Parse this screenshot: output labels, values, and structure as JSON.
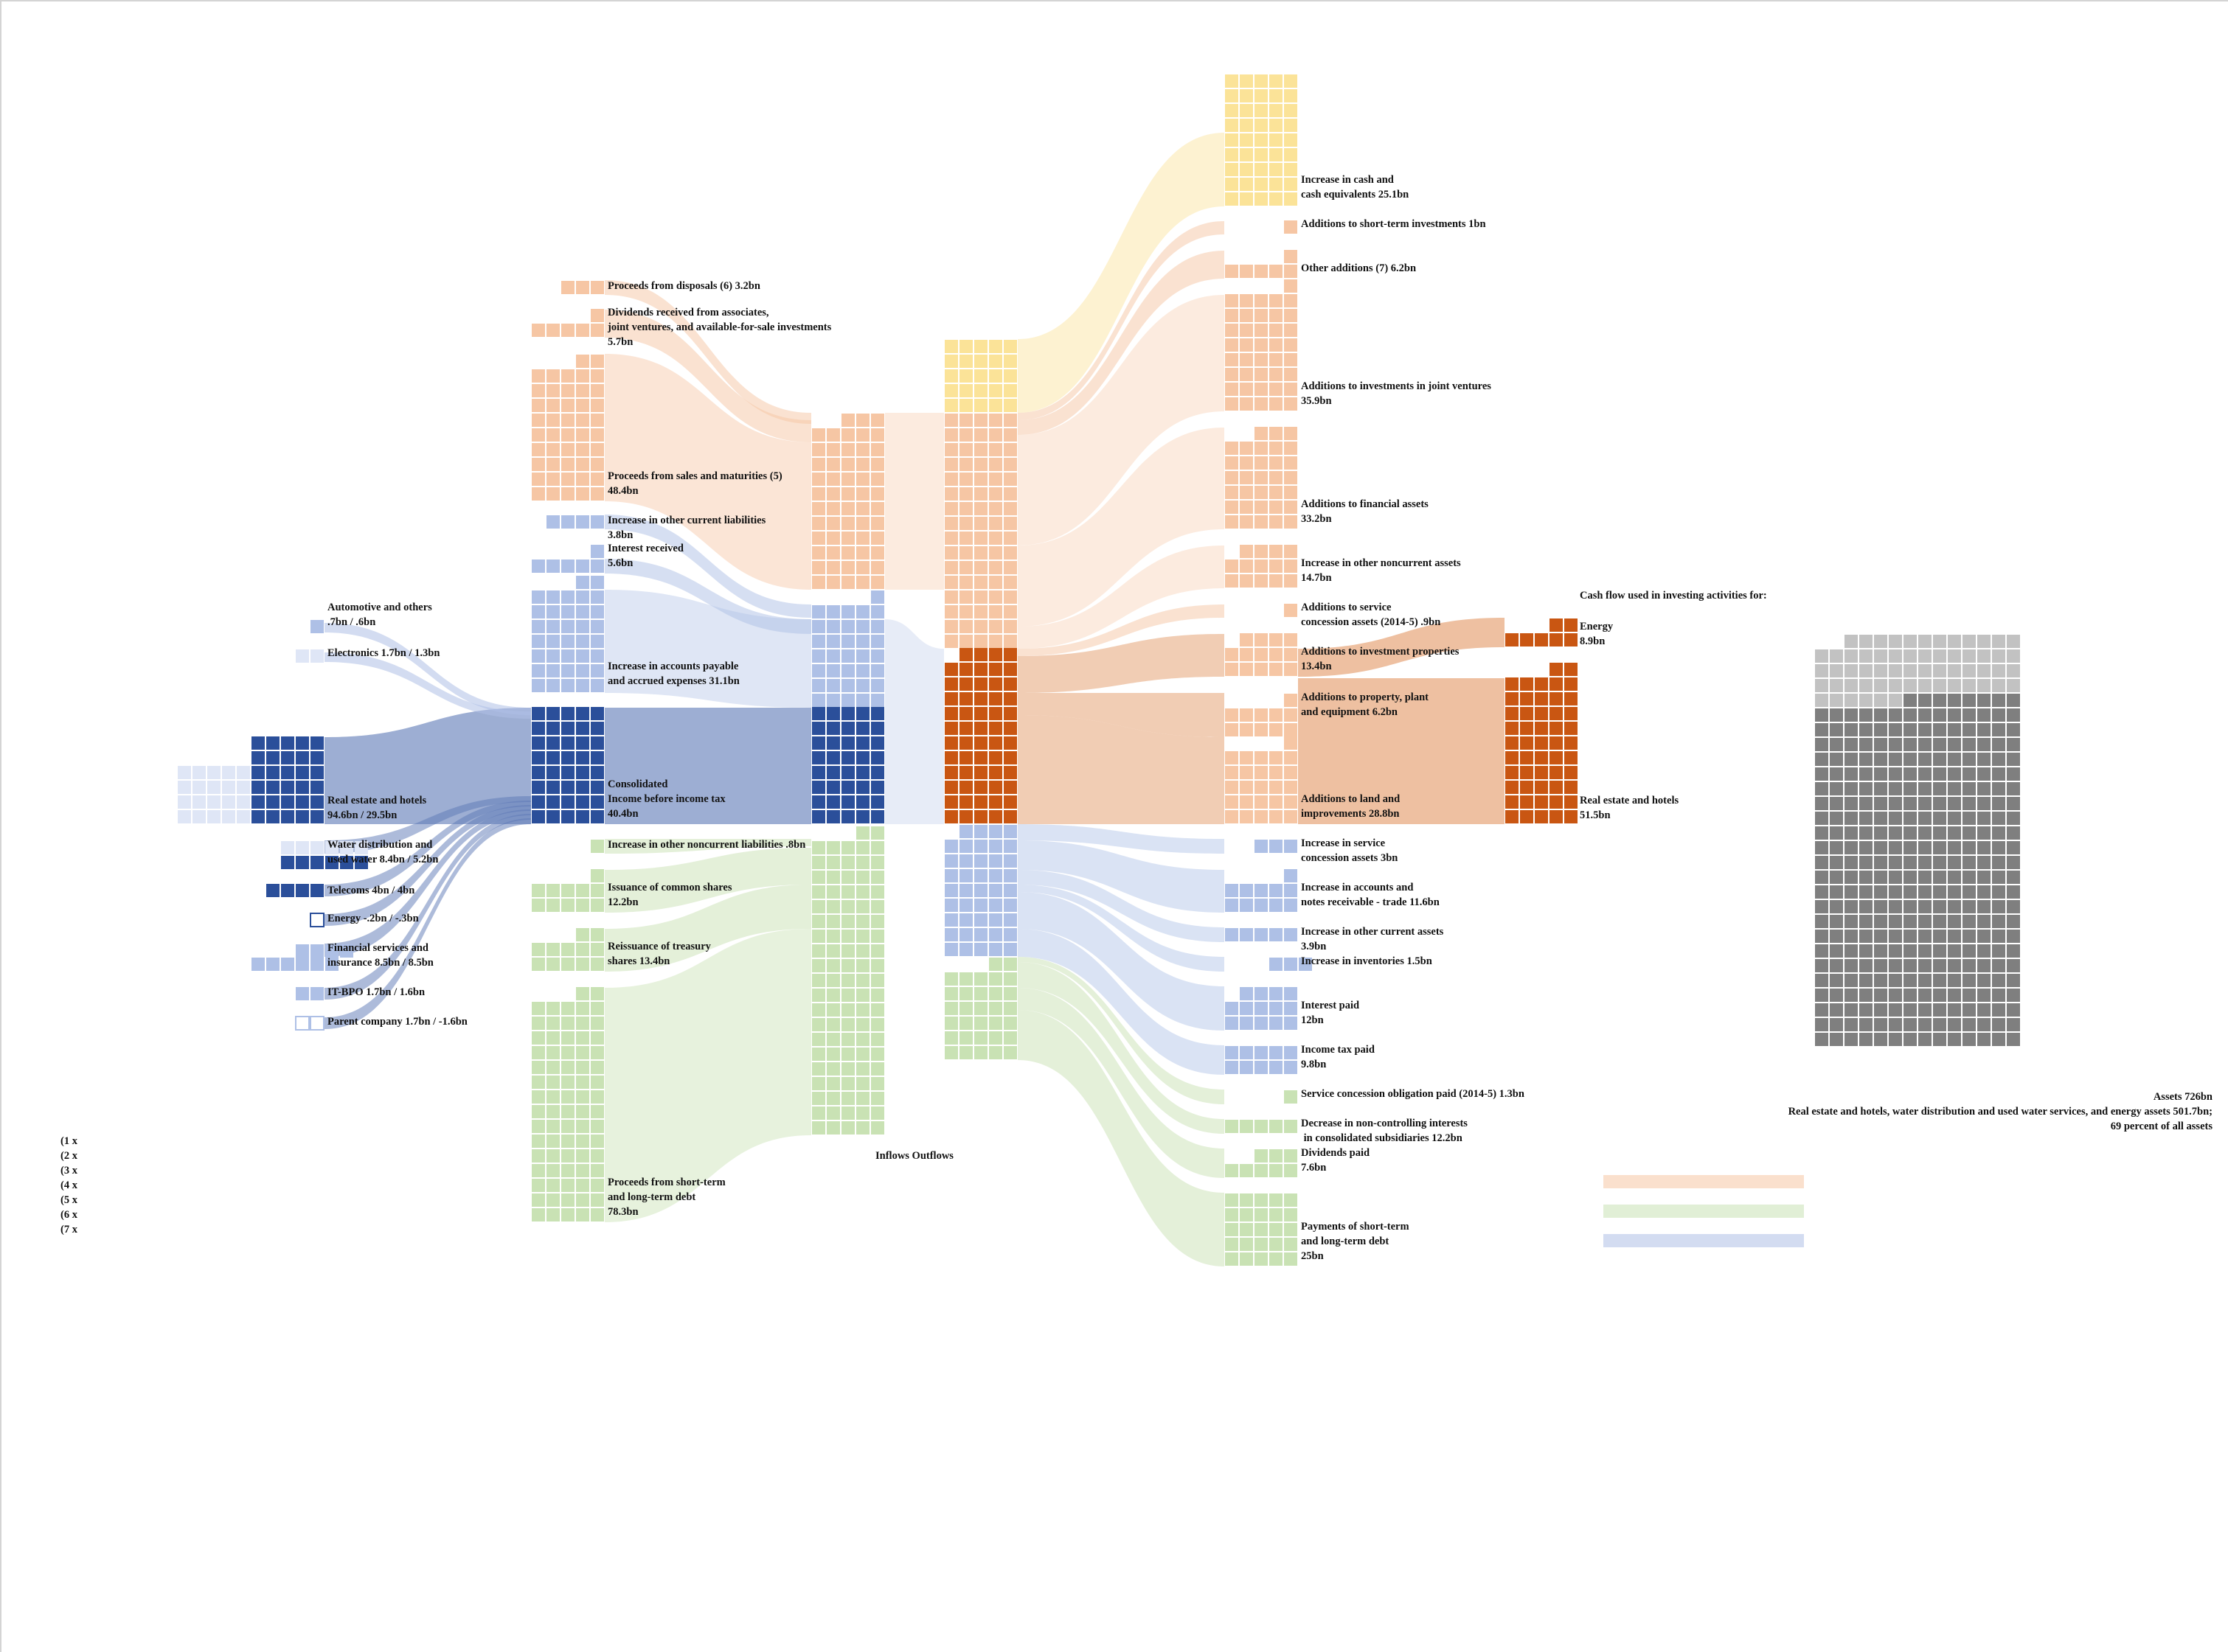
{
  "palette": {
    "blue_dark": "#2b4f9a",
    "blue_light": "#aec0e6",
    "blue_pale": "#dfe6f6",
    "orange_light": "#f6c6a4",
    "orange_dark": "#c95612",
    "orange_flow_dark": "#e8ab82",
    "yellow": "#fbe398",
    "green": "#c9e2b4",
    "green_flow": "#e6f1da",
    "gray_light": "#c2c2c2",
    "gray_dark": "#7f7f7f"
  },
  "left_segments": [
    {
      "label": "Automotive and others\n.7bn / .6bn"
    },
    {
      "label": "Electronics 1.7bn / 1.3bn"
    },
    {
      "label": "Real estate and hotels\n94.6bn / 29.5bn"
    },
    {
      "label": "Water distribution and\nused water 8.4bn / 5.2bn"
    },
    {
      "label": "Telecoms 4bn / 4bn"
    },
    {
      "label": "Energy -.2bn / -.3bn"
    },
    {
      "label": "Financial services and\ninsurance 8.5bn / 8.5bn"
    },
    {
      "label": "IT-BPO 1.7bn / 1.6bn"
    },
    {
      "label": "Parent company 1.7bn / -1.6bn"
    }
  ],
  "inflows": [
    {
      "label": "Proceeds from disposals (6) 3.2bn"
    },
    {
      "label": "Dividends received from associates,\njoint ventures, and available-for-sale investments\n5.7bn"
    },
    {
      "label": "Proceeds from sales and maturities (5)\n48.4bn"
    },
    {
      "label": "Increase in other current liabilities\n3.8bn"
    },
    {
      "label": "Interest received\n5.6bn"
    },
    {
      "label": "Increase in accounts payable\nand accrued expenses 31.1bn"
    },
    {
      "label": "Consolidated\nIncome before income tax\n40.4bn"
    },
    {
      "label": "Increase in other noncurrent liabilities .8bn"
    },
    {
      "label": "Issuance of common shares\n12.2bn"
    },
    {
      "label": "Reissuance of treasury\nshares 13.4bn"
    },
    {
      "label": "Proceeds from short-term\nand long-term debt\n78.3bn"
    }
  ],
  "center_label": "Inflows Outflows",
  "outflows": [
    {
      "label": "Increase in cash and\ncash equivalents 25.1bn"
    },
    {
      "label": "Additions to short-term investments 1bn"
    },
    {
      "label": "Other additions (7) 6.2bn"
    },
    {
      "label": "Additions to investments in joint ventures\n35.9bn"
    },
    {
      "label": "Additions to financial assets\n33.2bn"
    },
    {
      "label": "Increase in other noncurrent assets\n14.7bn"
    },
    {
      "label": "Additions to service\nconcession assets (2014-5) .9bn"
    },
    {
      "label": "Additions to investment properties\n13.4bn"
    },
    {
      "label": "Additions to property, plant\nand equipment 6.2bn"
    },
    {
      "label": "Additions to land and\nimprovements 28.8bn"
    },
    {
      "label": "Increase in service\nconcession assets 3bn"
    },
    {
      "label": "Increase in accounts and\nnotes receivable - trade 11.6bn"
    },
    {
      "label": "Increase in other current assets\n3.9bn"
    },
    {
      "label": "Increase in inventories 1.5bn"
    },
    {
      "label": "Interest paid\n12bn"
    },
    {
      "label": "Income tax paid\n9.8bn"
    },
    {
      "label": "Service concession obligation paid (2014-5) 1.3bn"
    },
    {
      "label": "Decrease in non-controlling interests\n in consolidated subsidiaries 12.2bn"
    },
    {
      "label": "Dividends paid\n7.6bn"
    },
    {
      "label": "Payments of short-term\nand long-term debt\n25bn"
    }
  ],
  "investing": {
    "title": "Cash flow used in investing activities for:",
    "items": [
      {
        "label": "Energy\n8.9bn"
      },
      {
        "label": "Real estate and hotels\n51.5bn"
      }
    ]
  },
  "assets": {
    "caption": "Assets 726bn\nReal estate and hotels, water distribution and used water services, and energy assets 501.7bn;\n69 percent of all assets"
  },
  "footnotes": [
    "(1 x",
    "(2 x",
    "(3 x",
    "(4 x",
    "(5 x",
    "(6 x",
    "(7 x"
  ]
}
